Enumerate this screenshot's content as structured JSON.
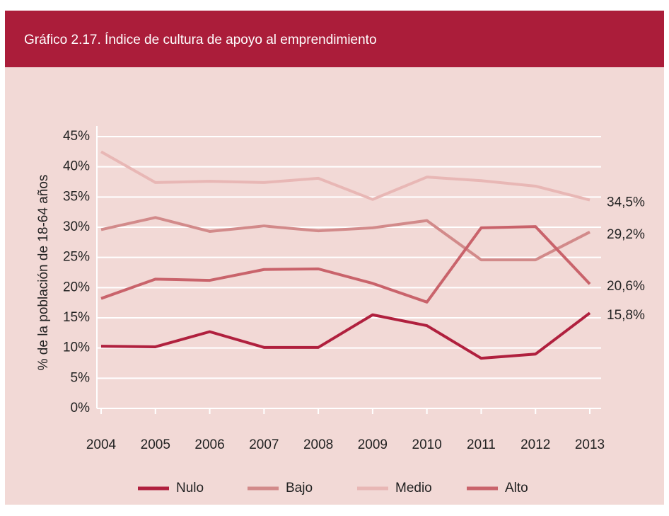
{
  "chart_data": {
    "type": "line",
    "title": "Gráfico 2.17. Índice de cultura de apoyo al emprendimiento",
    "y_label": "% de la población de 18-64 años",
    "categories": [
      "2004",
      "2005",
      "2006",
      "2007",
      "2008",
      "2009",
      "2010",
      "2011",
      "2012",
      "2013"
    ],
    "series": [
      {
        "name": "Nulo",
        "color": "#b0203e",
        "values": [
          10.3,
          10.2,
          12.7,
          10.1,
          10.1,
          15.5,
          13.7,
          8.3,
          9.0,
          15.8
        ],
        "value_labels": [
          null,
          null,
          null,
          null,
          null,
          null,
          null,
          null,
          null,
          "15,8%"
        ]
      },
      {
        "name": "Bajo",
        "color": "#d28a8a",
        "values": [
          29.6,
          31.6,
          29.3,
          30.2,
          29.4,
          29.9,
          31.1,
          24.6,
          24.6,
          29.2
        ],
        "value_labels": [
          null,
          null,
          null,
          null,
          null,
          null,
          null,
          null,
          null,
          "29,2%"
        ]
      },
      {
        "name": "Medio",
        "color": "#e8b7b5",
        "values": [
          42.5,
          37.4,
          37.6,
          37.4,
          38.1,
          34.6,
          38.3,
          37.7,
          36.8,
          34.5
        ],
        "value_labels": [
          null,
          null,
          null,
          null,
          null,
          null,
          null,
          null,
          null,
          "34,5%"
        ]
      },
      {
        "name": "Alto",
        "color": "#c9636b",
        "values": [
          18.2,
          21.4,
          21.2,
          23.0,
          23.1,
          20.7,
          17.6,
          29.9,
          30.1,
          20.6
        ],
        "value_labels": [
          null,
          null,
          null,
          null,
          null,
          null,
          null,
          null,
          null,
          "20,6%"
        ]
      }
    ],
    "ylim": [
      0,
      45
    ],
    "yticks": [
      {
        "value": 0,
        "label": "0%"
      },
      {
        "value": 5,
        "label": "5%"
      },
      {
        "value": 10,
        "label": "10%"
      },
      {
        "value": 15,
        "label": "15%"
      },
      {
        "value": 20,
        "label": "20%"
      },
      {
        "value": 25,
        "label": "25%"
      },
      {
        "value": 30,
        "label": "30%"
      },
      {
        "value": 35,
        "label": "35%"
      },
      {
        "value": 40,
        "label": "40%"
      },
      {
        "value": 45,
        "label": "45%"
      }
    ],
    "grid": true,
    "legend": "bottom"
  }
}
